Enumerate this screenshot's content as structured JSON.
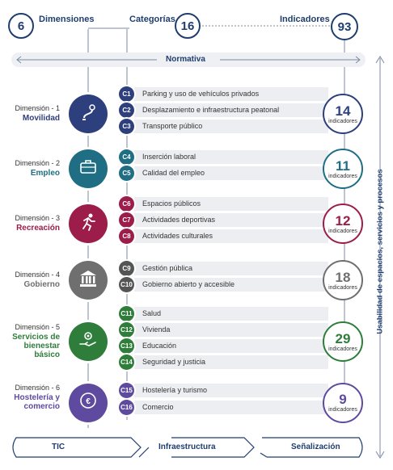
{
  "header": {
    "dimensiones": {
      "count": "6",
      "label": "Dimensiones"
    },
    "categorias": {
      "count": "16",
      "label": "Categorías"
    },
    "indicadores": {
      "count": "93",
      "label": "Indicadores"
    }
  },
  "normativa": "Normativa",
  "side_label": "Usabilidad de espacios, servicios y procesos",
  "indicator_unit": "indicadores",
  "colors": {
    "navy": "#1f3d6e",
    "movilidad": "#2e3f7d",
    "empleo": "#1f6e83",
    "recreacion": "#9c1c4a",
    "gobierno": "#6f6f6f",
    "bienestar": "#2f7d3a",
    "hosteleria": "#5e4a9e"
  },
  "dimensions": [
    {
      "num": "Dimensión - 1",
      "name": "Movilidad",
      "color": "#2e3f7d",
      "icon": "map-route-icon",
      "indicators": "14",
      "categories": [
        {
          "code": "C1",
          "label": "Parking y uso de vehículos privados"
        },
        {
          "code": "C2",
          "label": "Desplazamiento e infraestructura peatonal"
        },
        {
          "code": "C3",
          "label": "Transporte público"
        }
      ]
    },
    {
      "num": "Dimensión - 2",
      "name": "Empleo",
      "color": "#1f6e83",
      "icon": "briefcase-icon",
      "indicators": "11",
      "categories": [
        {
          "code": "C4",
          "label": "Inserción laboral"
        },
        {
          "code": "C5",
          "label": "Calidad del empleo"
        }
      ]
    },
    {
      "num": "Dimensión - 3",
      "name": "Recreación",
      "color": "#9c1c4a",
      "icon": "running-person-icon",
      "indicators": "12",
      "categories": [
        {
          "code": "C6",
          "label": "Espacios públicos"
        },
        {
          "code": "C7",
          "label": "Actividades deportivas"
        },
        {
          "code": "C8",
          "label": "Actividades culturales"
        }
      ]
    },
    {
      "num": "Dimensión - 4",
      "name": "Gobierno",
      "color": "#6f6f6f",
      "icon": "government-building-icon",
      "indicators": "18",
      "categories": [
        {
          "code": "C9",
          "label": "Gestión pública"
        },
        {
          "code": "C10",
          "label": "Gobierno abierto y accesible"
        }
      ]
    },
    {
      "num": "Dimensión - 5",
      "name": "Servicios de bienestar básico",
      "color": "#2f7d3a",
      "icon": "hand-gear-icon",
      "indicators": "29",
      "categories": [
        {
          "code": "C11",
          "label": "Salud"
        },
        {
          "code": "C12",
          "label": "Vivienda"
        },
        {
          "code": "C13",
          "label": "Educación"
        },
        {
          "code": "C14",
          "label": "Seguridad y justicia"
        }
      ]
    },
    {
      "num": "Dimensión - 6",
      "name": "Hostelería y comercio",
      "color": "#5e4a9e",
      "icon": "commerce-coins-icon",
      "indicators": "9",
      "categories": [
        {
          "code": "C15",
          "label": "Hostelería y turismo"
        },
        {
          "code": "C16",
          "label": "Comercio"
        }
      ]
    }
  ],
  "bottom": {
    "tic": "TIC",
    "infraestructura": "Infraestructura",
    "senalizacion": "Señalización"
  }
}
